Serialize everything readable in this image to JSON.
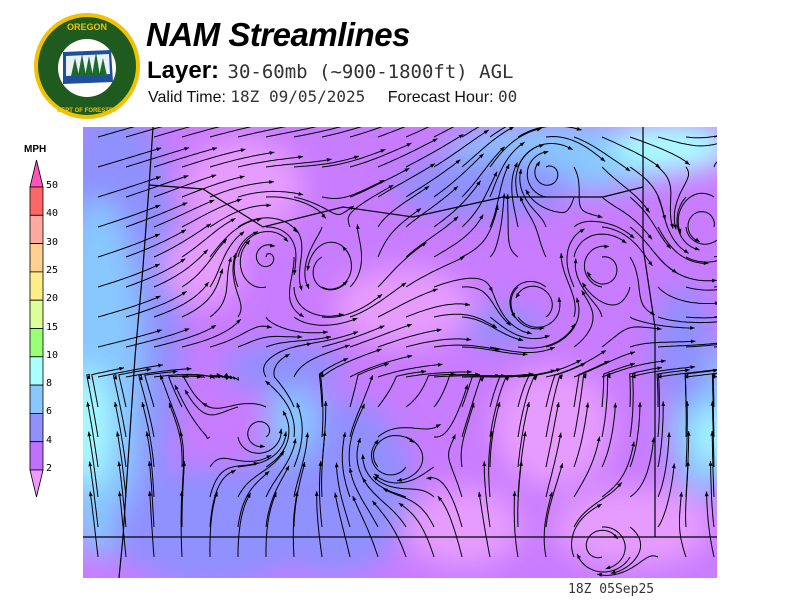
{
  "header": {
    "logo_text": [
      "OREGON",
      "DEPARTMENT OF FORESTRY"
    ],
    "title": "NAM Streamlines",
    "layer_label": "Layer:",
    "layer_value": "30-60mb (~900-1800ft) AGL",
    "valid_time_label": "Valid Time:",
    "valid_time_value": "18Z 09/05/2025",
    "forecast_hour_label": "Forecast Hour:",
    "forecast_hour_value": "00"
  },
  "colorbar": {
    "unit": "MPH",
    "labels": [
      "50",
      "40",
      "30",
      "25",
      "20",
      "15",
      "10",
      "8",
      "6",
      "4",
      "2"
    ],
    "colors": [
      "#ff6666",
      "#ffaaa0",
      "#ffd090",
      "#ffee88",
      "#ddff99",
      "#99ff77",
      "#aaffff",
      "#88c8ff",
      "#9090ff",
      "#c070ff"
    ],
    "over_color": "#ff55bb",
    "under_color": "#ee99ff"
  },
  "map": {
    "colors": {
      "background": "#c87cff",
      "light": "#e69cff",
      "blue": "#9090ff",
      "lightblue": "#88c8ff",
      "cyan": "#aaffff"
    }
  },
  "footer": {
    "timestamp": "18Z 05Sep25"
  }
}
